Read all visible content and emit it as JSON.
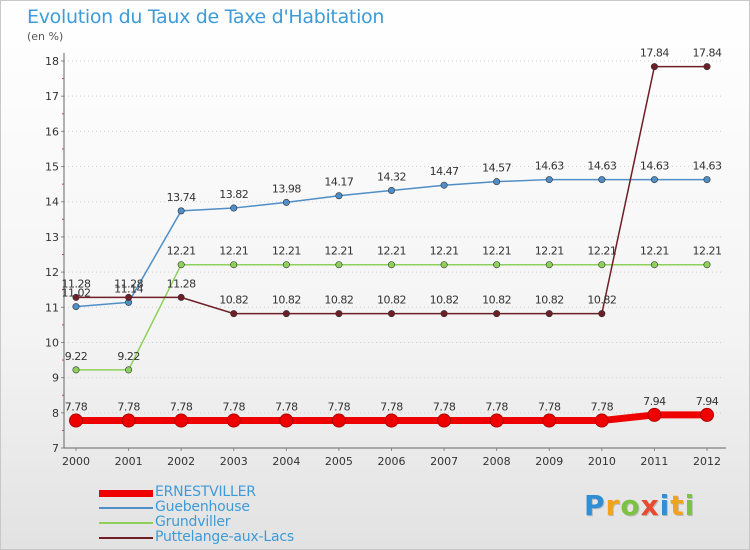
{
  "title": "Evolution du Taux de Taxe d'Habitation",
  "subtitle": "(en %)",
  "brand": {
    "text": "Proxiti",
    "letter_colors": [
      "#2f8fd6",
      "#f2a21b",
      "#7cc243",
      "#e8492f",
      "#2f8fd6",
      "#f2a21b",
      "#7cc243"
    ]
  },
  "chart_data": {
    "type": "line",
    "x": [
      "2000",
      "2001",
      "2002",
      "2003",
      "2004",
      "2005",
      "2006",
      "2007",
      "2008",
      "2009",
      "2010",
      "2011",
      "2012"
    ],
    "ylim": [
      7,
      18
    ],
    "yticks": [
      "7",
      "8",
      "9",
      "10",
      "11",
      "12",
      "13",
      "14",
      "15",
      "16",
      "17",
      "18"
    ],
    "grid": "horizontal dotted",
    "legend_placement": "bottom-left",
    "series": [
      {
        "name": "ERNESTVILLER",
        "color": "#ee0000",
        "emphasis": true,
        "values": [
          7.78,
          7.78,
          7.78,
          7.78,
          7.78,
          7.78,
          7.78,
          7.78,
          7.78,
          7.78,
          7.78,
          7.94,
          7.94
        ],
        "labels": [
          "7.78",
          "7.78",
          "7.78",
          "7.78",
          "7.78",
          "7.78",
          "7.78",
          "7.78",
          "7.78",
          "7.78",
          "7.78",
          "7.94",
          "7.94"
        ]
      },
      {
        "name": "Guebenhouse",
        "color": "#4f8ec6",
        "values": [
          11.02,
          11.14,
          13.74,
          13.82,
          13.98,
          14.17,
          14.32,
          14.47,
          14.57,
          14.63,
          14.63,
          14.63,
          14.63
        ],
        "labels": [
          "11.02",
          "11.14",
          "13.74",
          "13.82",
          "13.98",
          "14.17",
          "14.32",
          "14.47",
          "14.57",
          "14.63",
          "14.63",
          "14.63",
          "14.63"
        ]
      },
      {
        "name": "Grundviller",
        "color": "#8ed15a",
        "values": [
          9.22,
          9.22,
          12.21,
          12.21,
          12.21,
          12.21,
          12.21,
          12.21,
          12.21,
          12.21,
          12.21,
          12.21,
          12.21
        ],
        "labels": [
          "9.22",
          "9.22",
          "12.21",
          "12.21",
          "12.21",
          "12.21",
          "12.21",
          "12.21",
          "12.21",
          "12.21",
          "12.21",
          "12.21",
          "12.21"
        ]
      },
      {
        "name": "Puttelange-aux-Lacs",
        "color": "#6e1f26",
        "values": [
          11.28,
          11.28,
          11.28,
          10.82,
          10.82,
          10.82,
          10.82,
          10.82,
          10.82,
          10.82,
          10.82,
          17.84,
          17.84
        ],
        "labels": [
          "11.28",
          "11.28",
          "11.28",
          "10.82",
          "10.82",
          "10.82",
          "10.82",
          "10.82",
          "10.82",
          "10.82",
          "10.82",
          "17.84",
          "17.84"
        ]
      }
    ]
  }
}
